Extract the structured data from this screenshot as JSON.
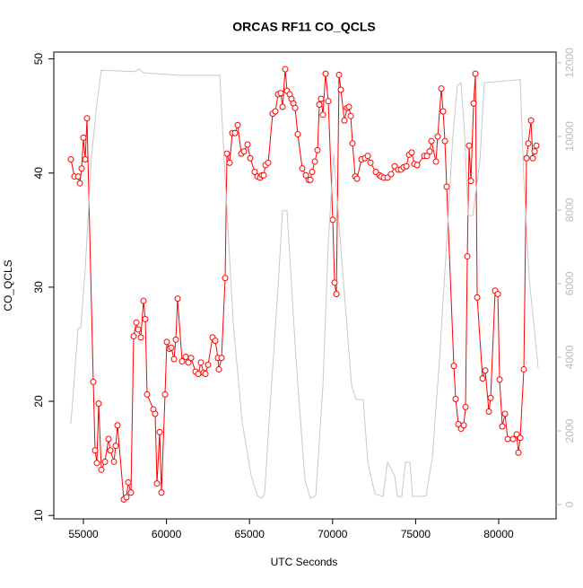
{
  "chart_data": {
    "type": "line",
    "title": "ORCAS RF11 CO_QCLS",
    "xlabel": "UTC Seconds",
    "ylabel": "CO_QCLS",
    "xlim": [
      53218,
      83456
    ],
    "xticks": [
      55000,
      60000,
      65000,
      70000,
      75000,
      80000
    ],
    "ylim": [
      9.7,
      50.6
    ],
    "yticks": [
      10,
      20,
      30,
      40,
      50
    ],
    "y2lim": [
      -390,
      12290
    ],
    "y2ticks": [
      0,
      2000,
      4000,
      6000,
      8000,
      10000,
      12000
    ],
    "series": [
      {
        "color": "#ff0000",
        "markers": true,
        "x": [
          54244,
          54460,
          54676,
          54784,
          54892,
          55000,
          55108,
          55216,
          55594,
          55702,
          55810,
          55918,
          56080,
          56296,
          56512,
          56620,
          56836,
          56944,
          57052,
          57430,
          57592,
          57700,
          57862,
          58024,
          58186,
          58294,
          58456,
          58618,
          58726,
          58834,
          59212,
          59320,
          59428,
          59590,
          59698,
          59914,
          60022,
          60184,
          60292,
          60454,
          60562,
          60670,
          60940,
          61156,
          61318,
          61480,
          61750,
          61912,
          62074,
          62236,
          62344,
          62506,
          62776,
          62938,
          63100,
          63154,
          63316,
          63532,
          63640,
          63802,
          63964,
          64126,
          64288,
          64504,
          64666,
          64882,
          65044,
          65314,
          65476,
          65638,
          65746,
          65854,
          65962,
          66124,
          66394,
          66556,
          66718,
          66880,
          66988,
          67150,
          67258,
          67420,
          67528,
          67636,
          67744,
          67906,
          68176,
          68392,
          68554,
          68662,
          68770,
          68932,
          69094,
          69202,
          69310,
          69418,
          69580,
          69742,
          70012,
          70120,
          70228,
          70390,
          70498,
          70714,
          70876,
          70984,
          71092,
          71200,
          71362,
          71470,
          71740,
          71956,
          72118,
          72280,
          72604,
          72820,
          72928,
          73090,
          73306,
          73522,
          73738,
          73954,
          74116,
          74278,
          74440,
          74602,
          74764,
          74926,
          75088,
          75520,
          75682,
          75844,
          75952,
          76222,
          76330,
          76546,
          76654,
          76762,
          76870,
          77302,
          77410,
          77572,
          77734,
          77896,
          78004,
          78112,
          78220,
          78328,
          78490,
          78598,
          78706,
          79030,
          79192,
          79408,
          79516,
          79786,
          79948,
          80056,
          80218,
          80380,
          80542,
          80866,
          81082,
          81190,
          81298,
          81514,
          81676,
          81784,
          81946,
          82054,
          82162,
          82270
        ],
        "values": [
          41.2,
          39.7,
          39.7,
          39.1,
          40.4,
          43.1,
          41.2,
          44.8,
          21.7,
          15.7,
          14.6,
          19.8,
          14.0,
          14.7,
          16.7,
          15.7,
          14.7,
          16.1,
          17.9,
          11.4,
          11.6,
          12.9,
          12.0,
          25.7,
          26.9,
          26.3,
          25.6,
          28.8,
          27.2,
          20.6,
          19.3,
          18.9,
          12.8,
          17.3,
          12.0,
          20.6,
          25.2,
          24.6,
          24.7,
          23.7,
          25.4,
          29.0,
          23.5,
          23.9,
          23.4,
          23.8,
          22.6,
          22.4,
          23.4,
          22.5,
          22.4,
          23.2,
          25.6,
          25.3,
          23.8,
          22.8,
          23.8,
          30.8,
          41.7,
          40.9,
          43.5,
          43.5,
          44.2,
          41.7,
          41.9,
          42.5,
          41.3,
          40.1,
          39.7,
          39.6,
          39.8,
          39.8,
          40.7,
          40.9,
          45.2,
          45.4,
          46.9,
          47.0,
          45.8,
          49.1,
          47.2,
          46.9,
          46.5,
          46.1,
          45.7,
          43.4,
          40.4,
          39.8,
          39.4,
          39.4,
          40.1,
          41.0,
          42.0,
          46.0,
          46.5,
          45.1,
          48.7,
          46.3,
          35.9,
          30.4,
          29.4,
          48.6,
          47.3,
          44.6,
          45.7,
          45.8,
          45.0,
          42.6,
          39.7,
          39.5,
          41.2,
          41.3,
          41.5,
          40.9,
          40.1,
          39.8,
          39.7,
          39.6,
          39.6,
          39.9,
          40.6,
          40.3,
          40.3,
          40.5,
          40.6,
          41.6,
          41.8,
          40.8,
          40.7,
          41.5,
          41.5,
          41.9,
          42.8,
          41.0,
          43.2,
          47.4,
          45.4,
          42.8,
          38.8,
          23.1,
          20.2,
          18.0,
          17.6,
          17.9,
          19.5,
          32.7,
          42.4,
          39.3,
          46.1,
          48.7,
          29.1,
          22.0,
          22.7,
          19.1,
          20.3,
          29.7,
          29.4,
          21.9,
          17.8,
          18.9,
          16.7,
          16.7,
          17.1,
          15.5,
          16.8,
          22.8,
          41.3,
          42.6,
          44.6,
          41.3,
          41.9,
          42.4
        ]
      },
      {
        "color": "#c8c8c8",
        "axis": "y2",
        "markers": false,
        "x": [
          54244,
          54460,
          54676,
          54838,
          55108,
          55486,
          55810,
          56080,
          58078,
          58348,
          58618,
          60778,
          63208,
          63478,
          64018,
          64558,
          65098,
          65476,
          65746,
          65908,
          66178,
          66718,
          66988,
          67258,
          67798,
          68338,
          68662,
          68986,
          69418,
          69742,
          70066,
          70390,
          70768,
          71146,
          71416,
          71848,
          72118,
          72550,
          73036,
          73306,
          73738,
          73900,
          74170,
          74386,
          74656,
          74818,
          75358,
          75628,
          76006,
          76438,
          76870,
          77248,
          77518,
          77734,
          77950,
          78166,
          78436,
          78868,
          79138,
          81298,
          81514,
          81838,
          82108,
          82378
        ],
        "values": [
          2195,
          3463,
          4780,
          4805,
          6390,
          9440,
          10900,
          11800,
          11760,
          11830,
          11730,
          11660,
          11660,
          9320,
          4930,
          2240,
          780,
          240,
          170,
          290,
          2240,
          5900,
          7980,
          7980,
          3950,
          660,
          170,
          240,
          3220,
          7120,
          9510,
          7610,
          5410,
          3220,
          2850,
          2850,
          1150,
          290,
          220,
          1150,
          780,
          220,
          220,
          1150,
          1150,
          220,
          220,
          240,
          1270,
          3950,
          7120,
          10050,
          11390,
          11460,
          10050,
          7850,
          7850,
          9320,
          11460,
          11540,
          8830,
          6150,
          4930,
          3710
        ]
      }
    ]
  }
}
